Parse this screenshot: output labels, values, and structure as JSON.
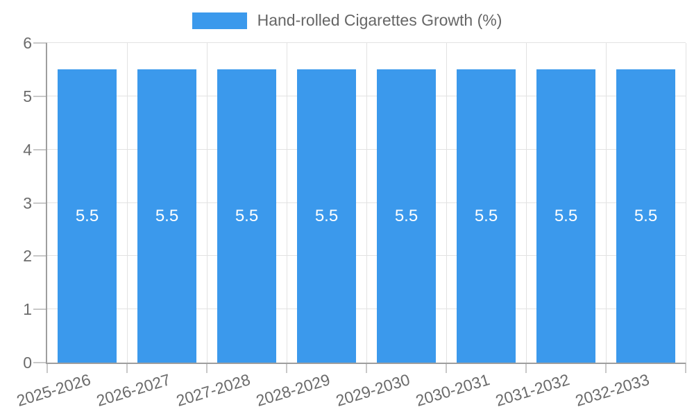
{
  "legend": {
    "label": "Hand-rolled Cigarettes Growth (%)"
  },
  "colors": {
    "bar": "#3B99EC",
    "axis": "#9E9E9E",
    "grid": "#E2E2E2",
    "tick": "#C8C8C8",
    "text": "#6B6B6B",
    "value_label": "#FFFFFF",
    "background": "#FFFFFF"
  },
  "chart_data": {
    "type": "bar",
    "title": "",
    "xlabel": "",
    "ylabel": "",
    "categories": [
      "2025-2026",
      "2026-2027",
      "2027-2028",
      "2028-2029",
      "2029-2030",
      "2030-2031",
      "2031-2032",
      "2032-2033"
    ],
    "series": [
      {
        "name": "Hand-rolled Cigarettes Growth (%)",
        "values": [
          5.5,
          5.5,
          5.5,
          5.5,
          5.5,
          5.5,
          5.5,
          5.5
        ]
      }
    ],
    "value_labels": [
      "5.5",
      "5.5",
      "5.5",
      "5.5",
      "5.5",
      "5.5",
      "5.5",
      "5.5"
    ],
    "ylim": [
      0,
      6
    ],
    "yticks": [
      0,
      1,
      2,
      3,
      4,
      5,
      6
    ],
    "grid": true,
    "legend_position": "top",
    "bar_label_position": "center",
    "x_tick_rotation_deg": -17
  }
}
